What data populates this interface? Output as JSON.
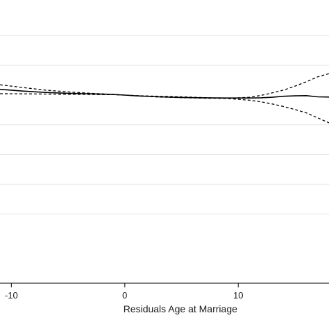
{
  "chart_data": {
    "type": "line",
    "title": "",
    "xlabel": "Residuals Age at Marriage",
    "ylabel": "",
    "xlim": [
      -11,
      18
    ],
    "ylim": [
      -0.95,
      0.48
    ],
    "x_ticks": [
      -10,
      0,
      10
    ],
    "x_tick_labels": [
      "-10",
      "0",
      "10"
    ],
    "y_gridlines": [
      0.3,
      0.15,
      -0.15,
      -0.3,
      -0.45,
      -0.6
    ],
    "grid": true,
    "legend": "none",
    "series": [
      {
        "style": "solid",
        "color": "#000000",
        "x": [
          -11,
          -9,
          -7,
          -5,
          -3,
          -1,
          0,
          1,
          3,
          5,
          7,
          9,
          11,
          12,
          13,
          14,
          15,
          16,
          17,
          18
        ],
        "y": [
          0.029,
          0.02,
          0.013,
          0.009,
          0.006,
          0.003,
          0.0,
          -0.004,
          -0.009,
          -0.012,
          -0.014,
          -0.015,
          -0.015,
          -0.014,
          -0.011,
          -0.006,
          -0.004,
          -0.003,
          -0.009,
          -0.01
        ]
      },
      {
        "style": "dashed",
        "color": "#000000",
        "x": [
          -11,
          -9,
          -7,
          -5,
          -3,
          -1,
          0,
          1,
          3,
          5,
          7,
          9,
          11,
          12,
          13,
          14,
          15,
          16,
          17,
          18
        ],
        "y": [
          0.052,
          0.038,
          0.025,
          0.016,
          0.009,
          0.003,
          0.0,
          -0.004,
          -0.01,
          -0.013,
          -0.016,
          -0.017,
          -0.011,
          -0.002,
          0.011,
          0.025,
          0.045,
          0.067,
          0.092,
          0.108
        ]
      },
      {
        "style": "dashed",
        "color": "#000000",
        "x": [
          -11,
          -9,
          -7,
          -5,
          -3,
          -1,
          0,
          1,
          3,
          5,
          7,
          9,
          11,
          12,
          13,
          14,
          15,
          16,
          17,
          18
        ],
        "y": [
          0.007,
          0.006,
          0.005,
          0.004,
          0.003,
          0.002,
          0.0,
          -0.003,
          -0.006,
          -0.009,
          -0.013,
          -0.017,
          -0.026,
          -0.034,
          -0.045,
          -0.058,
          -0.073,
          -0.09,
          -0.115,
          -0.14
        ]
      }
    ]
  }
}
